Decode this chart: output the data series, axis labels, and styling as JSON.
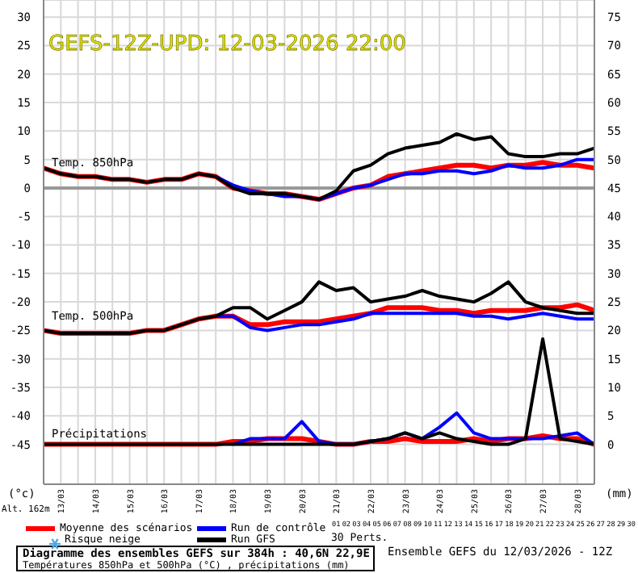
{
  "chart_data": {
    "type": "line",
    "title": "GEFS-12Z-UPD: 12-03-2026 22:00",
    "categories": [
      null,
      "13/03",
      null,
      "14/03",
      null,
      "15/03",
      null,
      "16/03",
      null,
      "17/03",
      null,
      "18/03",
      null,
      "19/03",
      null,
      "20/03",
      null,
      "21/03",
      null,
      "22/03",
      null,
      "23/03",
      null,
      "24/03",
      null,
      "25/03",
      null,
      "26/03",
      null,
      "27/03",
      null,
      "28/03",
      null
    ],
    "ylim": [
      -52,
      33
    ],
    "yticks": [
      -45,
      -40,
      -35,
      -30,
      -25,
      -20,
      -15,
      -10,
      -5,
      0,
      5,
      10,
      15,
      20,
      25,
      30
    ],
    "y2lim": [
      -7,
      78
    ],
    "y2ticks": [
      0,
      5,
      10,
      15,
      20,
      25,
      30,
      35,
      40,
      45,
      50,
      55,
      60,
      65,
      70,
      75
    ],
    "grid": true,
    "legend": "bottom",
    "ref_lines": [
      {
        "axis": "y",
        "value": 0,
        "color": "#999999"
      }
    ],
    "series": [
      {
        "name": "Moyenne des scénarios",
        "color": "#ff0000",
        "values": [
          3.5,
          2.5,
          2,
          2,
          1.5,
          1.5,
          1,
          1.5,
          1.5,
          2.5,
          2,
          0,
          -0.5,
          -1,
          -1,
          -1.5,
          -2,
          -1,
          0,
          0.5,
          2,
          2.5,
          3,
          3.5,
          4,
          4,
          3.5,
          4,
          4,
          4.5,
          4,
          4,
          3.5
        ]
      },
      {
        "name": "Run de contrôle",
        "color": "#0000ff",
        "values": [
          null,
          null,
          null,
          null,
          null,
          null,
          null,
          null,
          null,
          null,
          2,
          0.5,
          -0.5,
          -1,
          -1.5,
          -1.5,
          -2,
          -1,
          0,
          0.5,
          1.5,
          2.5,
          2.5,
          3,
          3,
          2.5,
          3,
          4,
          3.5,
          3.5,
          4,
          5,
          5
        ]
      },
      {
        "name": "Run GFS",
        "color": "#000000",
        "values": [
          3.5,
          2.5,
          2,
          2,
          1.5,
          1.5,
          1,
          1.5,
          1.5,
          2.5,
          2,
          0,
          -1,
          -1,
          -1,
          -1.5,
          -2,
          -0.5,
          3,
          4,
          6,
          7,
          7.5,
          8,
          9.5,
          8.5,
          9,
          6,
          5.5,
          5.5,
          6,
          6,
          7
        ]
      },
      {
        "color": "#ff0000",
        "values": [
          -25,
          -25.5,
          -25.5,
          -25.5,
          -25.5,
          -25.5,
          -25,
          -25,
          -24,
          -23,
          -22.5,
          -22.5,
          -24,
          -24,
          -23.5,
          -23.5,
          -23.5,
          -23,
          -22.5,
          -22,
          -21,
          -21,
          -21,
          -21.5,
          -21.5,
          -22,
          -21.5,
          -21.5,
          -21.5,
          -21,
          -21,
          -20.5,
          -21.5
        ]
      },
      {
        "color": "#0000ff",
        "values": [
          null,
          null,
          null,
          null,
          null,
          null,
          null,
          null,
          null,
          null,
          -22.5,
          -22.5,
          -24.5,
          -25,
          -24.5,
          -24,
          -24,
          -23.5,
          -23,
          -22,
          -22,
          -22,
          -22,
          -22,
          -22,
          -22.5,
          -22.5,
          -23,
          -22.5,
          -22,
          -22.5,
          -23,
          -23
        ]
      },
      {
        "color": "#000000",
        "values": [
          -25,
          -25.5,
          -25.5,
          -25.5,
          -25.5,
          -25.5,
          -25,
          -25,
          -24,
          -23,
          -22.5,
          -21,
          -21,
          -23,
          -21.5,
          -20,
          -16.5,
          -18,
          -17.5,
          -20,
          -19.5,
          -19,
          -18,
          -19,
          -19.5,
          -20,
          -18.5,
          -16.5,
          -20,
          -21,
          -21.5,
          -22,
          -22
        ]
      },
      {
        "color": "#ff0000",
        "axis": "y2",
        "values": [
          0,
          0,
          0,
          0,
          0,
          0,
          0,
          0,
          0,
          0,
          0,
          0.5,
          0.5,
          1,
          1,
          1,
          0.5,
          0,
          0,
          0.5,
          0.5,
          1,
          0.5,
          0.5,
          0.5,
          1,
          0.5,
          1,
          1,
          1.5,
          1,
          1,
          0
        ]
      },
      {
        "color": "#0000ff",
        "axis": "y2",
        "values": [
          null,
          null,
          null,
          null,
          null,
          null,
          null,
          null,
          null,
          null,
          null,
          0,
          1,
          1,
          1,
          4,
          0.5,
          0,
          0,
          0.5,
          1,
          2,
          1,
          3,
          5.5,
          2,
          1,
          1,
          1,
          1,
          1.5,
          2,
          0
        ]
      },
      {
        "color": "#000000",
        "axis": "y2",
        "values": [
          0,
          0,
          0,
          0,
          0,
          0,
          0,
          0,
          0,
          0,
          0,
          0,
          0,
          0,
          0,
          0,
          0,
          0,
          0,
          0.5,
          1,
          2,
          1,
          2,
          1,
          0.5,
          0,
          0,
          1,
          18.5,
          1,
          0.5,
          0
        ]
      }
    ],
    "annotations": [
      "Temp. 850hPa",
      "Temp. 500hPa",
      "Précipitations",
      "(°c)",
      "(mm)",
      "Alt. 162m",
      "Risque neige",
      "30 Perts.",
      "01 02 03 04 05 06 07 08 09 10 11 12 13 14 15 16 17 18 19 20 21 22 23 24 25 26 27 28 29 30",
      "Diagramme des ensembles GEFS sur 384h : 40,6N 22,9E",
      "Températures 850hPa et 500hPa (°C) , précipitations (mm)",
      "Ensemble GEFS du 12/03/2026 - 12Z"
    ]
  }
}
